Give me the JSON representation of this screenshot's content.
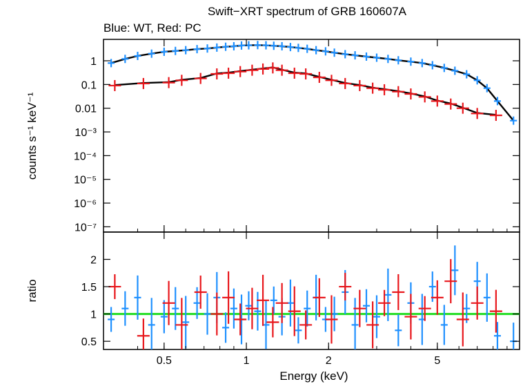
{
  "title": "Swift−XRT spectrum of GRB 160607A",
  "subtitle": "Blue: WT, Red: PC",
  "chart_data": [
    {
      "type": "scatter",
      "panel": "spectrum",
      "xlabel": "Energy (keV)",
      "ylabel": "counts s⁻¹ keV⁻¹",
      "xscale": "log",
      "yscale": "log",
      "xlim": [
        0.3,
        10
      ],
      "ylim": [
        6e-08,
        8
      ],
      "xticks": [
        0.5,
        1,
        2,
        5
      ],
      "xtick_labels": [
        "0.5",
        "1",
        "2",
        "5"
      ],
      "yticks": [
        1,
        0.1,
        0.01,
        0.001,
        0.0001,
        1e-05,
        1e-06,
        1e-07
      ],
      "ytick_labels": [
        "1",
        "0.1",
        "0.01",
        "10⁻³",
        "10⁻⁴",
        "10⁻⁵",
        "10⁻⁶",
        "10⁻⁷"
      ],
      "series": [
        {
          "color": "#1e90ff",
          "x": [
            0.32,
            0.36,
            0.4,
            0.45,
            0.5,
            0.55,
            0.6,
            0.66,
            0.72,
            0.78,
            0.84,
            0.9,
            0.96,
            1.02,
            1.1,
            1.18,
            1.26,
            1.35,
            1.45,
            1.55,
            1.67,
            1.8,
            1.95,
            2.1,
            2.3,
            2.5,
            2.75,
            3.0,
            3.3,
            3.6,
            4.0,
            4.4,
            4.8,
            5.3,
            5.8,
            6.4,
            7.0,
            7.6,
            8.3,
            9.5
          ],
          "y": [
            0.8,
            1.2,
            1.6,
            2.0,
            2.4,
            2.6,
            2.8,
            3.1,
            3.3,
            3.6,
            3.9,
            4.1,
            4.4,
            4.5,
            4.6,
            4.5,
            4.3,
            4.1,
            3.8,
            3.5,
            3.2,
            2.8,
            2.5,
            2.2,
            1.9,
            1.7,
            1.5,
            1.35,
            1.2,
            1.05,
            0.92,
            0.8,
            0.65,
            0.5,
            0.38,
            0.27,
            0.15,
            0.07,
            0.02,
            0.003
          ]
        },
        {
          "color": "#e8161b",
          "x": [
            0.33,
            0.42,
            0.52,
            0.58,
            0.68,
            0.78,
            0.86,
            0.95,
            1.05,
            1.15,
            1.25,
            1.35,
            1.5,
            1.65,
            1.85,
            2.05,
            2.3,
            2.6,
            2.9,
            3.2,
            3.6,
            4.0,
            4.5,
            5.0,
            5.6,
            6.2,
            7.0,
            8.2
          ],
          "y": [
            0.09,
            0.11,
            0.12,
            0.15,
            0.18,
            0.28,
            0.3,
            0.35,
            0.4,
            0.45,
            0.5,
            0.4,
            0.3,
            0.28,
            0.2,
            0.15,
            0.11,
            0.09,
            0.07,
            0.06,
            0.05,
            0.04,
            0.03,
            0.02,
            0.015,
            0.01,
            0.006,
            0.005
          ]
        }
      ]
    },
    {
      "type": "scatter",
      "panel": "ratio",
      "xlabel": "Energy (keV)",
      "ylabel": "ratio",
      "xscale": "log",
      "xlim": [
        0.3,
        10
      ],
      "ylim": [
        0.35,
        2.5
      ],
      "yticks": [
        0.5,
        1,
        1.5,
        2
      ],
      "ytick_labels": [
        "0.5",
        "1",
        "1.5",
        "2"
      ],
      "reference_line": {
        "y": 1,
        "color": "#22dd22"
      },
      "series": [
        {
          "color": "#1e90ff",
          "x": [
            0.32,
            0.36,
            0.4,
            0.45,
            0.5,
            0.55,
            0.6,
            0.66,
            0.72,
            0.78,
            0.84,
            0.9,
            0.96,
            1.02,
            1.1,
            1.18,
            1.26,
            1.35,
            1.45,
            1.55,
            1.67,
            1.8,
            1.95,
            2.1,
            2.3,
            2.5,
            2.75,
            3.0,
            3.3,
            3.6,
            4.0,
            4.4,
            4.8,
            5.3,
            5.8,
            6.4,
            7.0,
            7.6,
            8.3,
            9.5
          ],
          "y": [
            0.9,
            1.1,
            1.3,
            0.8,
            0.95,
            1.1,
            0.85,
            1.2,
            1.0,
            1.3,
            0.75,
            1.1,
            0.9,
            1.15,
            1.05,
            0.8,
            1.25,
            0.95,
            1.2,
            0.7,
            1.1,
            1.3,
            0.9,
            1.0,
            1.4,
            0.8,
            1.15,
            0.95,
            1.35,
            0.7,
            1.2,
            0.9,
            1.5,
            0.8,
            1.8,
            1.1,
            1.6,
            1.3,
            0.6,
            0.5
          ]
        },
        {
          "color": "#e8161b",
          "x": [
            0.33,
            0.42,
            0.52,
            0.58,
            0.68,
            0.78,
            0.86,
            0.95,
            1.05,
            1.15,
            1.25,
            1.35,
            1.5,
            1.65,
            1.85,
            2.05,
            2.3,
            2.6,
            2.9,
            3.2,
            3.6,
            4.0,
            4.5,
            5.0,
            5.6,
            6.2,
            7.0,
            8.2
          ],
          "y": [
            1.5,
            0.6,
            1.2,
            0.8,
            1.4,
            1.0,
            1.3,
            0.9,
            1.1,
            1.25,
            0.85,
            1.2,
            1.05,
            0.8,
            1.3,
            0.9,
            1.5,
            1.1,
            0.8,
            1.2,
            1.4,
            0.95,
            1.1,
            1.3,
            1.6,
            0.9,
            1.2,
            1.05
          ]
        }
      ]
    }
  ]
}
